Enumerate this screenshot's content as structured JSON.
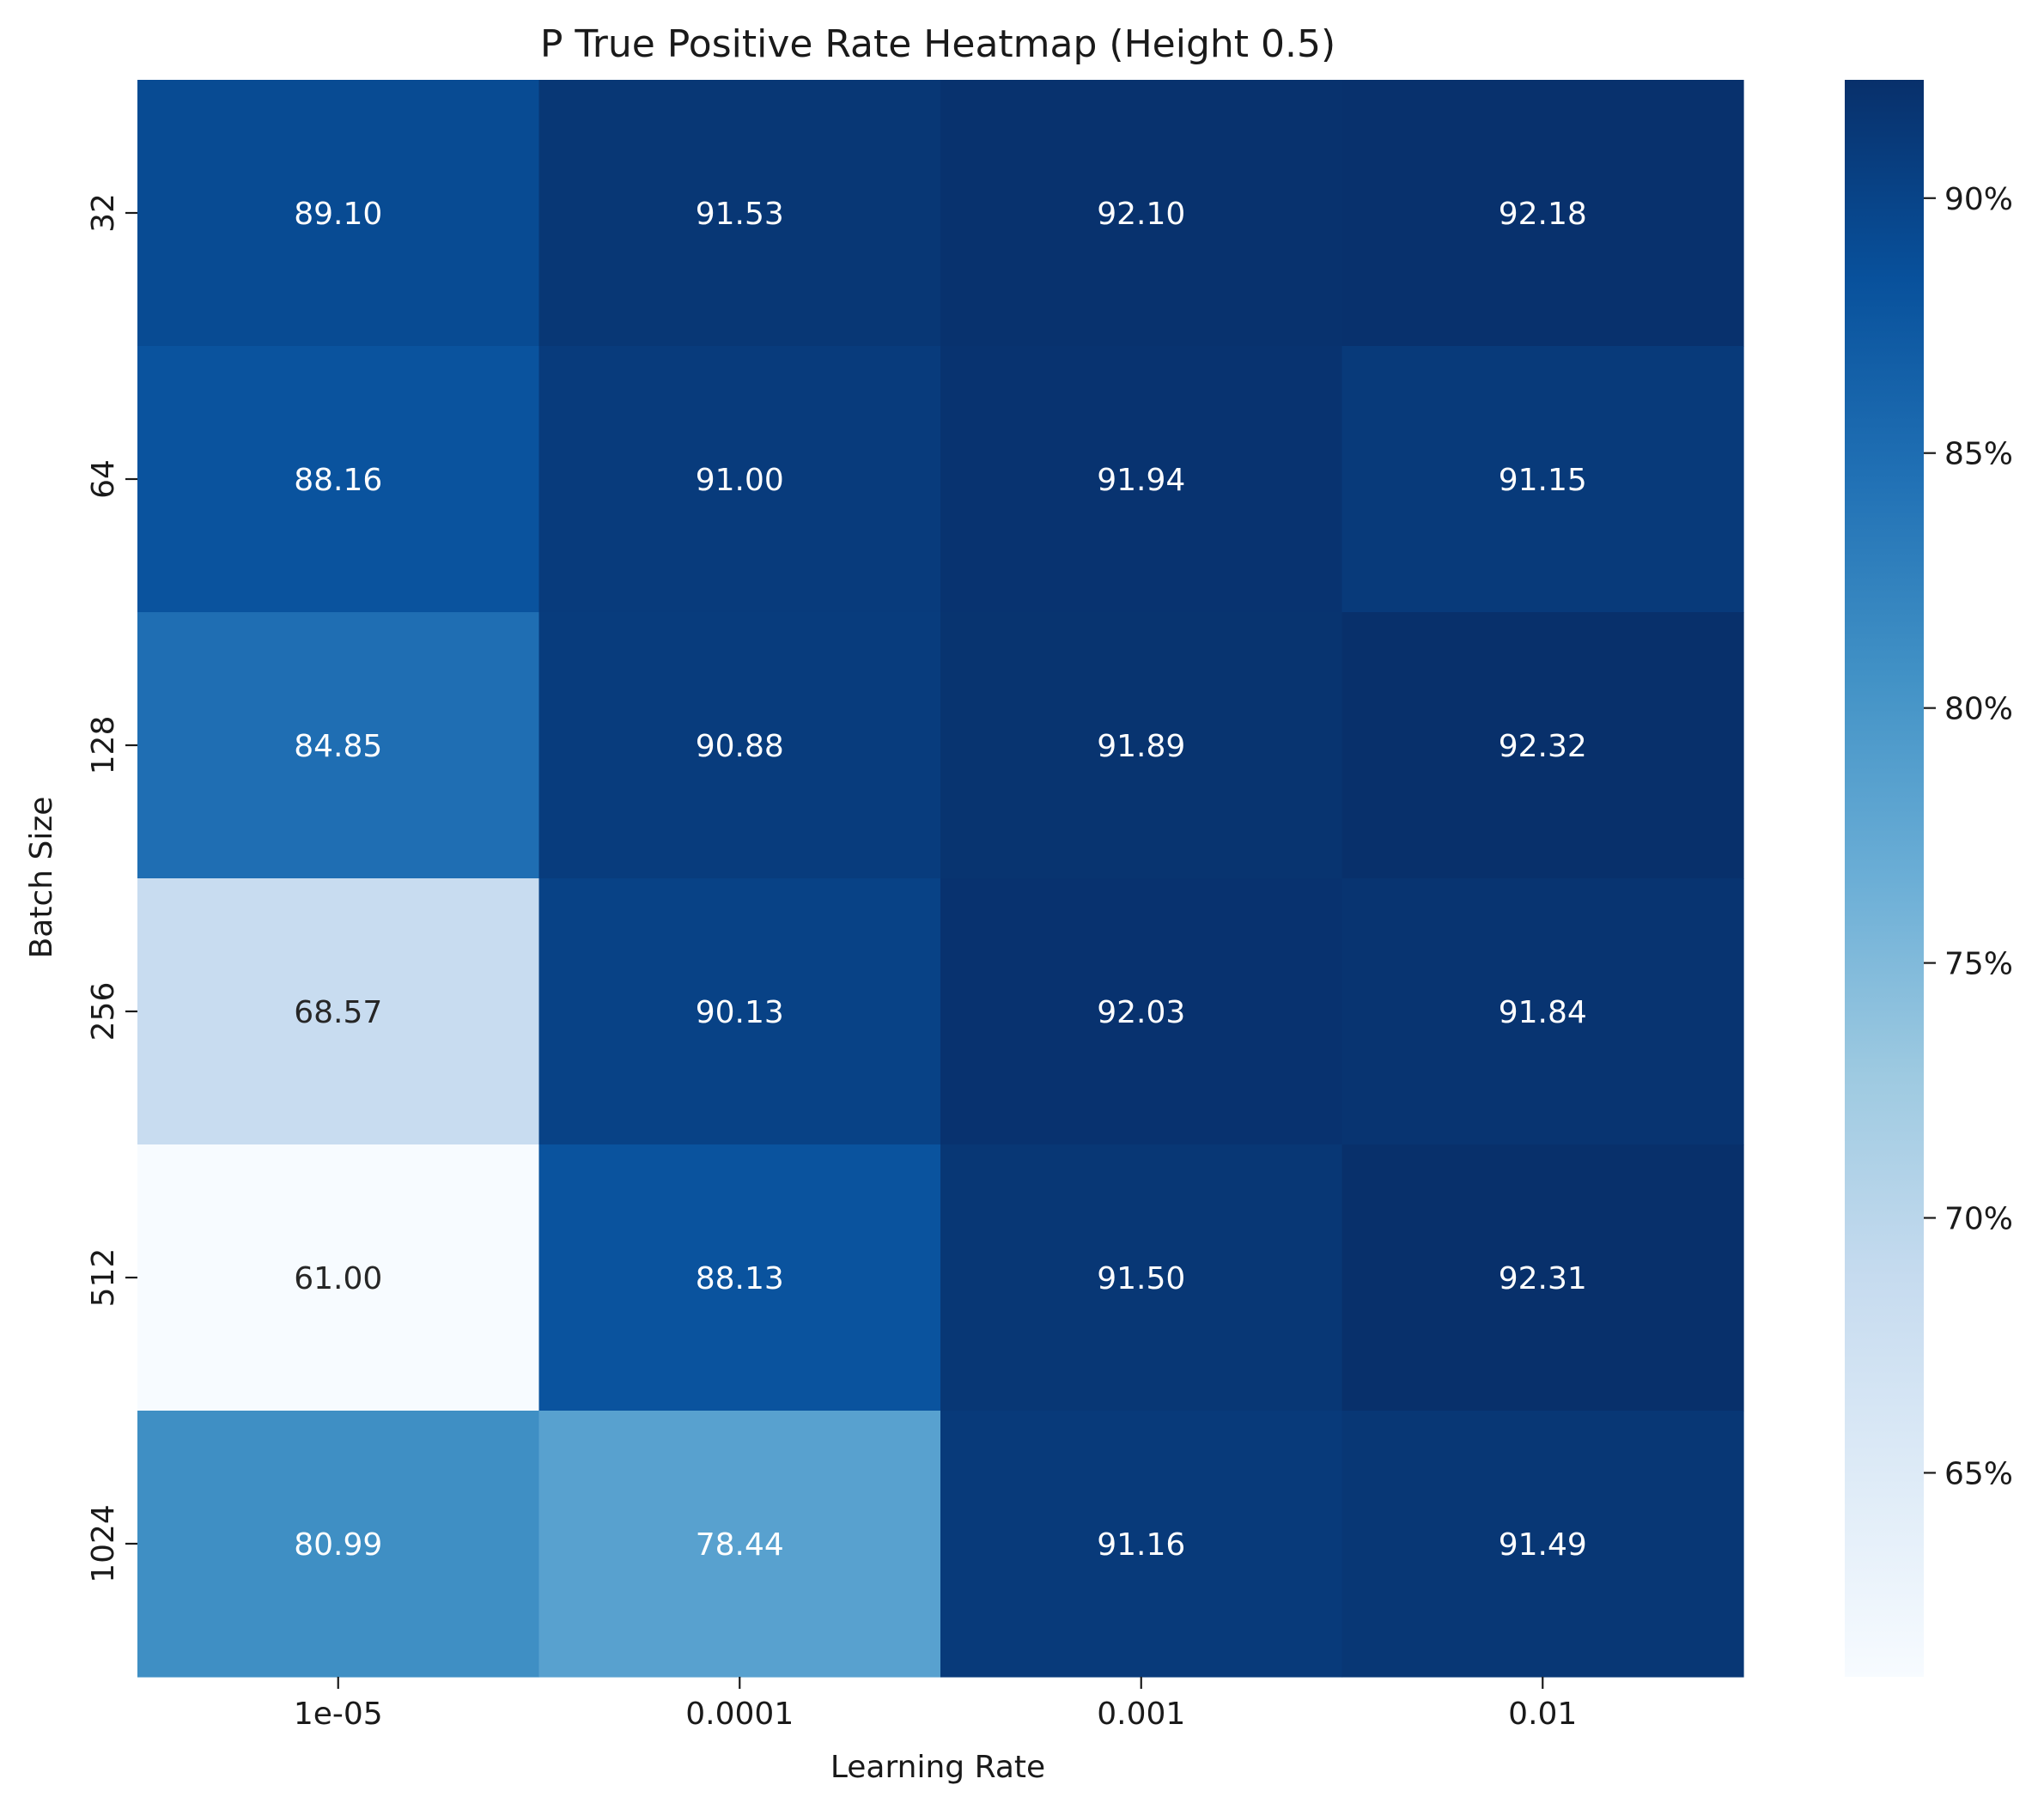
{
  "chart_data": {
    "type": "heatmap",
    "title": "P True Positive Rate Heatmap (Height 0.5)",
    "xlabel": "Learning Rate",
    "ylabel": "Batch Size",
    "x_categories": [
      "1e-05",
      "0.0001",
      "0.001",
      "0.01"
    ],
    "y_categories": [
      "32",
      "64",
      "128",
      "256",
      "512",
      "1024"
    ],
    "values": [
      [
        89.1,
        91.53,
        92.1,
        92.18
      ],
      [
        88.16,
        91.0,
        91.94,
        91.15
      ],
      [
        84.85,
        90.88,
        91.89,
        92.32
      ],
      [
        68.57,
        90.13,
        92.03,
        91.84
      ],
      [
        61.0,
        88.13,
        91.5,
        92.31
      ],
      [
        80.99,
        78.44,
        91.16,
        91.49
      ]
    ],
    "value_labels": [
      [
        "89.10",
        "91.53",
        "92.10",
        "92.18"
      ],
      [
        "88.16",
        "91.00",
        "91.94",
        "91.15"
      ],
      [
        "84.85",
        "90.88",
        "91.89",
        "92.32"
      ],
      [
        "68.57",
        "90.13",
        "92.03",
        "91.84"
      ],
      [
        "61.00",
        "88.13",
        "91.50",
        "92.31"
      ],
      [
        "80.99",
        "78.44",
        "91.16",
        "91.49"
      ]
    ],
    "colormap": "Blues",
    "color_range": [
      61.0,
      92.32
    ],
    "colorbar": {
      "ticks": [
        65,
        70,
        75,
        80,
        85,
        90
      ],
      "tick_labels": [
        "65%",
        "70%",
        "75%",
        "80%",
        "85%",
        "90%"
      ]
    },
    "grid": false,
    "legend": "colorbar-right"
  }
}
